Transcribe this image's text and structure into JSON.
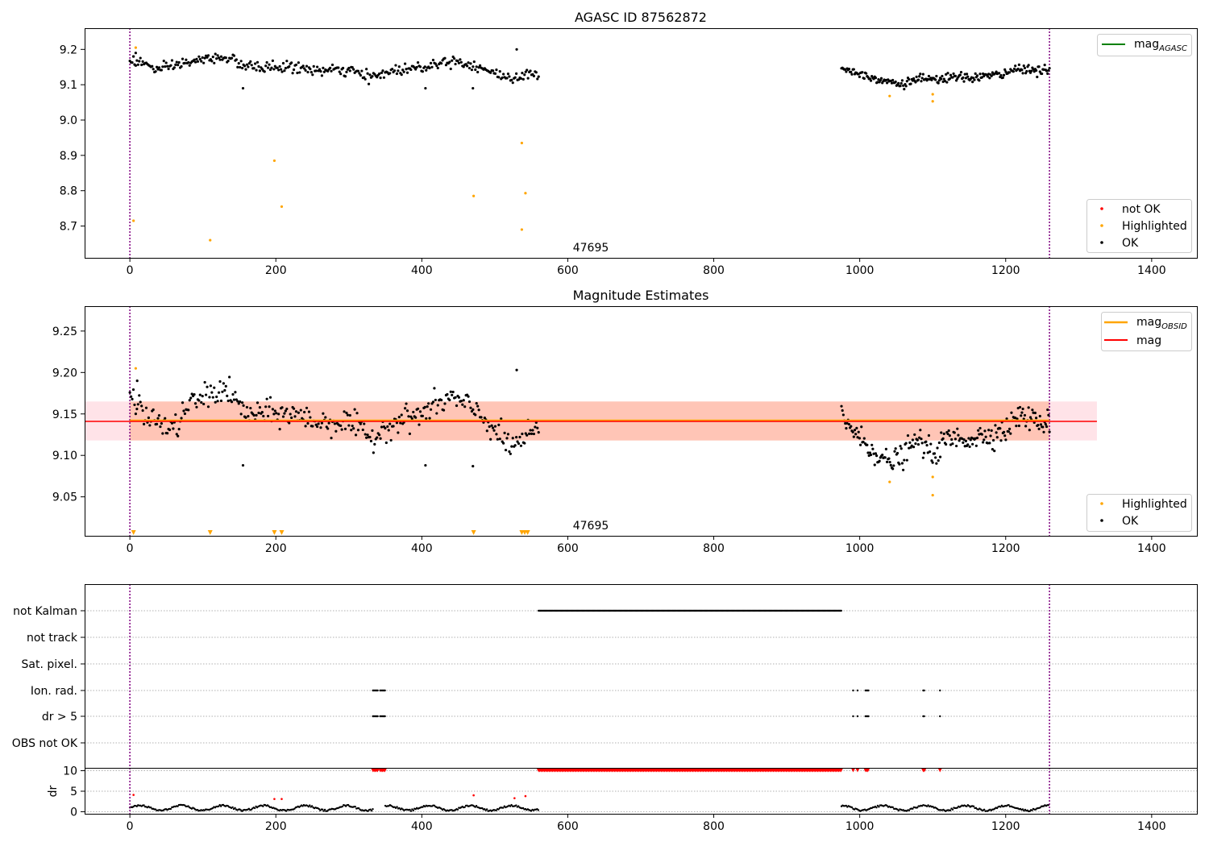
{
  "figure": {
    "colors": {
      "ok": "#000000",
      "not_ok": "#ff0000",
      "highlighted": "#ffa500",
      "mag_agasc": "#008000",
      "mag_obsid": "#ffa500",
      "mag": "#ff0000",
      "band_obsid": "#ffa07a",
      "band_mag": "#ffc0cb",
      "obs_boundary": "#800080",
      "grid": "#b0b0b0"
    }
  },
  "chart_data": [
    {
      "type": "scatter",
      "title": "AGASC ID 87562872",
      "annotation": "47695",
      "xlim": [
        -62,
        1462
      ],
      "ylim": [
        8.61,
        9.26
      ],
      "xticks": [
        "0",
        "200",
        "400",
        "600",
        "800",
        "1000",
        "1200",
        "1400"
      ],
      "yticks": [
        "8.7",
        "8.8",
        "8.9",
        "9.0",
        "9.1",
        "9.2"
      ],
      "ytick_values": [
        8.7,
        8.8,
        8.9,
        9.0,
        9.1,
        9.2
      ],
      "xtick_values": [
        0,
        200,
        400,
        600,
        800,
        1000,
        1200,
        1400
      ],
      "obs_boundaries": [
        0,
        1260
      ],
      "ok_segments": [
        {
          "x_start": 0,
          "x_end": 560,
          "n": 350,
          "base": [
            [
              0,
              9.17
            ],
            [
              20,
              9.16
            ],
            [
              40,
              9.14
            ],
            [
              70,
              9.16
            ],
            [
              100,
              9.17
            ],
            [
              130,
              9.18
            ],
            [
              160,
              9.15
            ],
            [
              220,
              9.15
            ],
            [
              260,
              9.14
            ],
            [
              300,
              9.14
            ],
            [
              330,
              9.12
            ],
            [
              360,
              9.14
            ],
            [
              400,
              9.15
            ],
            [
              440,
              9.17
            ],
            [
              480,
              9.15
            ],
            [
              500,
              9.13
            ],
            [
              520,
              9.12
            ],
            [
              560,
              9.13
            ]
          ],
          "spread": 0.014,
          "outliers": [
            [
              5,
              9.18
            ],
            [
              8,
              9.19
            ],
            [
              155,
              9.09
            ],
            [
              405,
              9.09
            ],
            [
              470,
              9.09
            ],
            [
              530,
              9.2
            ]
          ]
        },
        {
          "x_start": 975,
          "x_end": 1260,
          "n": 220,
          "base": [
            [
              975,
              9.15
            ],
            [
              1000,
              9.13
            ],
            [
              1040,
              9.11
            ],
            [
              1060,
              9.1
            ],
            [
              1080,
              9.12
            ],
            [
              1100,
              9.11
            ],
            [
              1120,
              9.12
            ],
            [
              1150,
              9.12
            ],
            [
              1200,
              9.13
            ],
            [
              1220,
              9.15
            ],
            [
              1240,
              9.14
            ],
            [
              1260,
              9.14
            ]
          ],
          "spread": 0.012,
          "outliers": []
        }
      ],
      "highlighted_points": [
        [
          8,
          9.205
        ],
        [
          5,
          8.715
        ],
        [
          110,
          8.66
        ],
        [
          198,
          8.885
        ],
        [
          208,
          8.755
        ],
        [
          471,
          8.785
        ],
        [
          537,
          8.935
        ],
        [
          537,
          8.69
        ],
        [
          542,
          8.793
        ],
        [
          1041,
          9.068
        ],
        [
          1100,
          9.073
        ],
        [
          1100,
          9.053
        ]
      ],
      "legend_lines": [
        {
          "label": "mag",
          "sub": "AGASC"
        }
      ],
      "legend_points": [
        "not OK",
        "Highlighted",
        "OK"
      ]
    },
    {
      "type": "scatter",
      "title": "Magnitude Estimates",
      "annotation": "47695",
      "xlim": [
        -62,
        1462
      ],
      "ylim": [
        9.003,
        9.28
      ],
      "xticks": [
        "0",
        "200",
        "400",
        "600",
        "800",
        "1000",
        "1200",
        "1400"
      ],
      "yticks": [
        "9.05",
        "9.10",
        "9.15",
        "9.20",
        "9.25"
      ],
      "ytick_values": [
        9.05,
        9.1,
        9.15,
        9.2,
        9.25
      ],
      "xtick_values": [
        0,
        200,
        400,
        600,
        800,
        1000,
        1200,
        1400
      ],
      "obs_boundaries": [
        0,
        1260
      ],
      "mag_obsid": 9.142,
      "mag": 9.141,
      "band_obsid": [
        9.118,
        9.165
      ],
      "band_mag": [
        9.118,
        9.165
      ],
      "band_x": [
        -62,
        1325
      ],
      "ok_segments": [
        {
          "x_start": 0,
          "x_end": 560,
          "n": 350,
          "base": [
            [
              0,
              9.17
            ],
            [
              20,
              9.15
            ],
            [
              40,
              9.14
            ],
            [
              60,
              9.13
            ],
            [
              80,
              9.16
            ],
            [
              100,
              9.17
            ],
            [
              130,
              9.18
            ],
            [
              160,
              9.15
            ],
            [
              220,
              9.15
            ],
            [
              260,
              9.14
            ],
            [
              300,
              9.14
            ],
            [
              330,
              9.12
            ],
            [
              360,
              9.14
            ],
            [
              400,
              9.15
            ],
            [
              440,
              9.17
            ],
            [
              480,
              9.15
            ],
            [
              500,
              9.13
            ],
            [
              520,
              9.11
            ],
            [
              560,
              9.13
            ]
          ],
          "spread": 0.014,
          "outliers": [
            [
              10,
              9.19
            ],
            [
              155,
              9.088
            ],
            [
              405,
              9.088
            ],
            [
              470,
              9.087
            ],
            [
              530,
              9.203
            ]
          ]
        },
        {
          "x_start": 975,
          "x_end": 1260,
          "n": 220,
          "base": [
            [
              975,
              9.15
            ],
            [
              1000,
              9.12
            ],
            [
              1040,
              9.09
            ],
            [
              1060,
              9.1
            ],
            [
              1080,
              9.12
            ],
            [
              1100,
              9.1
            ],
            [
              1120,
              9.12
            ],
            [
              1150,
              9.12
            ],
            [
              1200,
              9.13
            ],
            [
              1220,
              9.15
            ],
            [
              1240,
              9.14
            ],
            [
              1260,
              9.14
            ]
          ],
          "spread": 0.013,
          "outliers": []
        }
      ],
      "highlighted_points": [
        [
          8,
          9.205
        ],
        [
          1041,
          9.068
        ],
        [
          1100,
          9.074
        ],
        [
          1100,
          9.052
        ]
      ],
      "highlighted_triangles": [
        5,
        110,
        198,
        208,
        471,
        537,
        541,
        545
      ],
      "legend_lines": [
        {
          "label": "mag",
          "sub": "OBSID"
        },
        {
          "label": "mag",
          "sub": ""
        }
      ],
      "legend_points": [
        "Highlighted",
        "OK"
      ]
    },
    {
      "type": "scatter",
      "xlim": [
        -62,
        1462
      ],
      "xticks": [
        "0",
        "200",
        "400",
        "600",
        "800",
        "1000",
        "1200",
        "1400"
      ],
      "xtick_values": [
        0,
        200,
        400,
        600,
        800,
        1000,
        1200,
        1400
      ],
      "obs_boundaries": [
        0,
        1260
      ],
      "flag_rows": [
        "not Kalman",
        "not track",
        "Sat. pixel.",
        "Ion. rad.",
        "dr > 5",
        "OBS not OK"
      ],
      "flag_ranges": {
        "not Kalman": [
          [
            560,
            975
          ]
        ],
        "not track": [],
        "Sat. pixel.": [],
        "Ion. rad.": [
          [
            333,
            340
          ],
          [
            343,
            350
          ],
          [
            991,
            991
          ],
          [
            997,
            997
          ],
          [
            1008,
            1012
          ],
          [
            1087,
            1089
          ],
          [
            1110,
            1110
          ]
        ],
        "dr > 5": [
          [
            333,
            340
          ],
          [
            343,
            350
          ],
          [
            991,
            991
          ],
          [
            997,
            997
          ],
          [
            1008,
            1012
          ],
          [
            1087,
            1089
          ],
          [
            1110,
            1110
          ]
        ],
        "OBS not OK": []
      },
      "dr_ylabel": "dr",
      "dr_yticks": [
        "0",
        "5",
        "10"
      ],
      "dr_ytick_values": [
        0,
        5,
        10
      ],
      "dr_ylim": [
        -0.5,
        10.5
      ],
      "dr_clipped_ranges": [
        [
          333,
          340
        ],
        [
          343,
          350
        ],
        [
          560,
          975
        ],
        [
          991,
          991
        ],
        [
          997,
          997
        ],
        [
          1008,
          1012
        ],
        [
          1087,
          1089
        ],
        [
          1110,
          1110
        ]
      ],
      "dr_red_points": [
        [
          5,
          4.1
        ],
        [
          198,
          3.1
        ],
        [
          208,
          3.1
        ],
        [
          471,
          4.0
        ],
        [
          527,
          3.3
        ],
        [
          542,
          3.8
        ]
      ],
      "dr_ok_segments": [
        [
          0,
          333
        ],
        [
          350,
          560
        ],
        [
          975,
          1087
        ],
        [
          1089,
          1260
        ]
      ]
    }
  ]
}
